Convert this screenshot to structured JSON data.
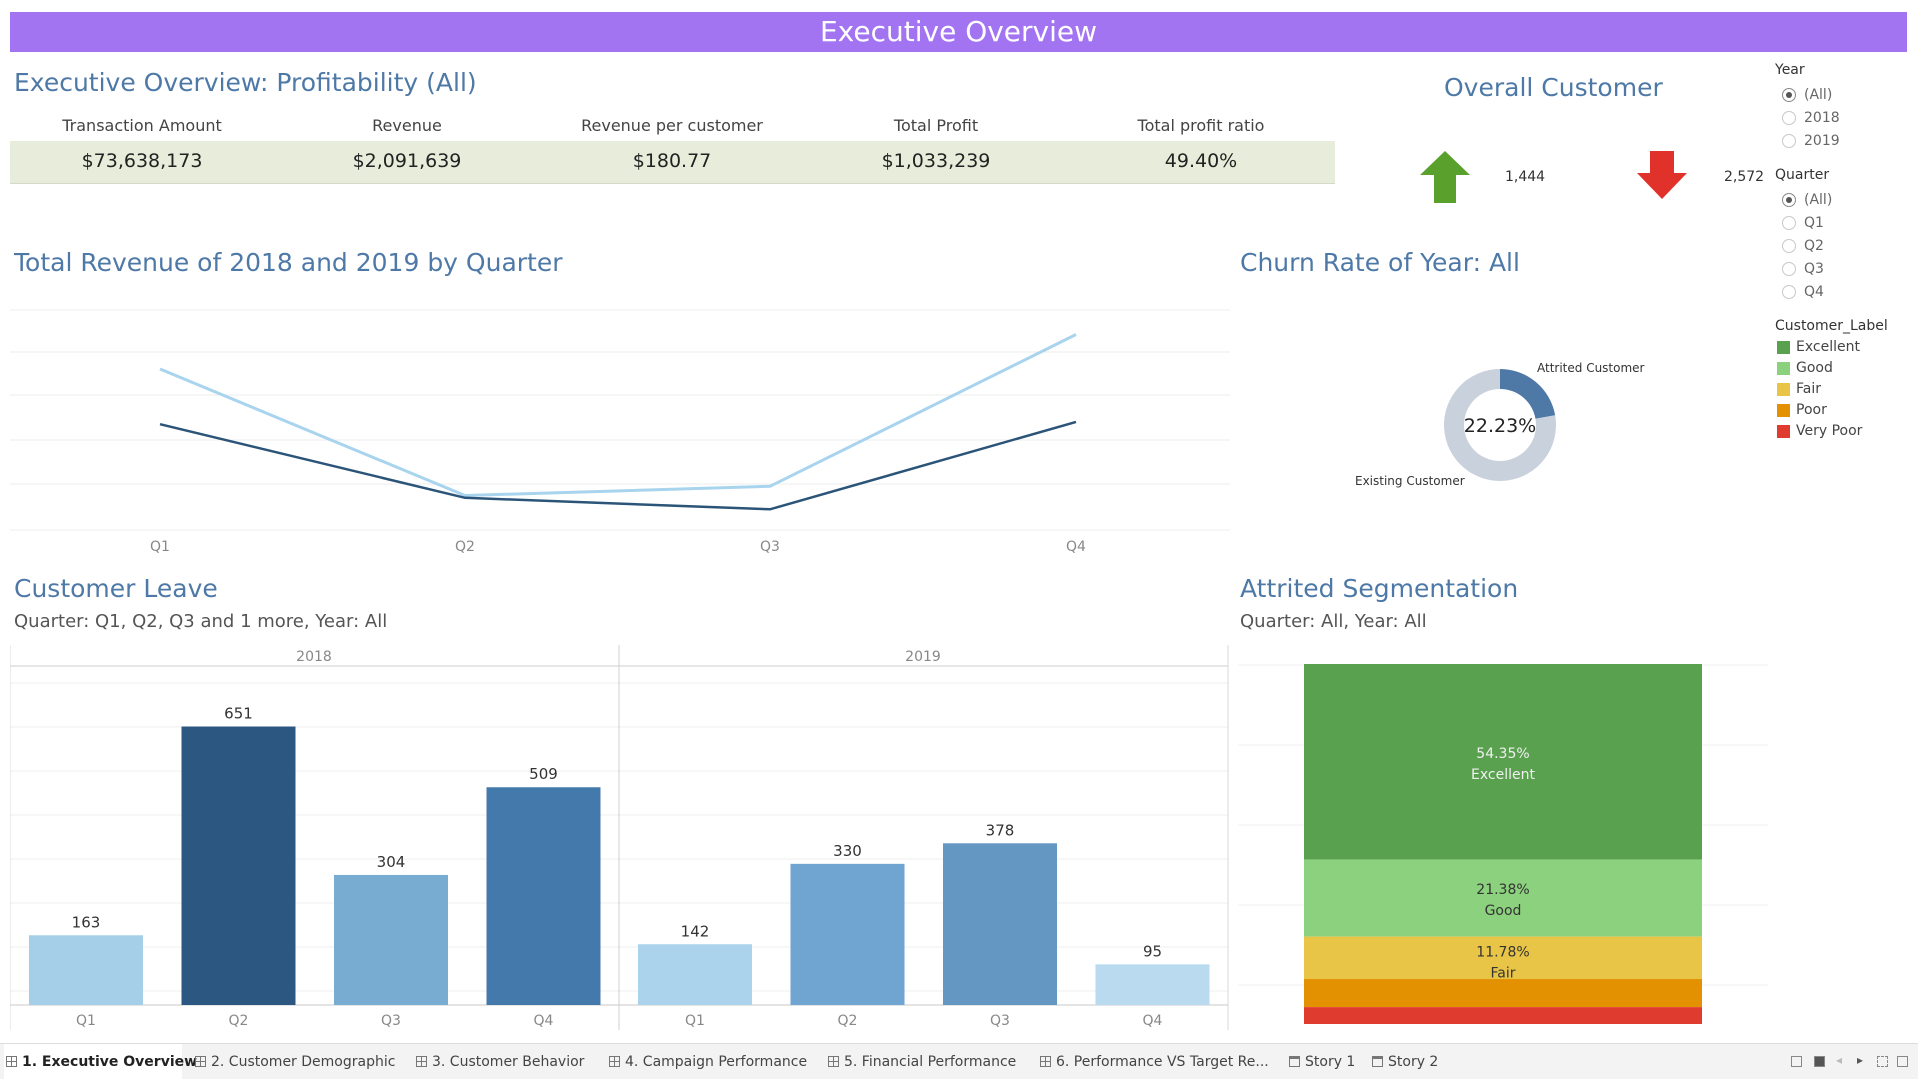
{
  "banner": {
    "title": "Executive Overview"
  },
  "profit": {
    "title": "Executive Overview: Profitability (All)",
    "kpis": [
      {
        "label": "Transaction Amount",
        "value": "$73,638,173"
      },
      {
        "label": "Revenue",
        "value": "$2,091,639"
      },
      {
        "label": "Revenue per customer",
        "value": "$180.77"
      },
      {
        "label": "Total Profit",
        "value": "$1,033,239"
      },
      {
        "label": "Total profit ratio",
        "value": "49.40%"
      }
    ]
  },
  "overall_customer": {
    "title": "Overall Customer",
    "up_value": "1,444",
    "down_value": "2,572",
    "up_icon": "arrow-up-icon",
    "down_icon": "arrow-down-icon",
    "up_color": "#5aa02c",
    "down_color": "#e0322b"
  },
  "revenue_chart": {
    "title": "Total Revenue of 2018 and 2019 by Quarter"
  },
  "churn": {
    "title": "Churn Rate of Year: All",
    "center_label": "22.23%",
    "attrited_label": "Attrited Customer",
    "existing_label": "Existing Customer"
  },
  "leave": {
    "title": "Customer Leave",
    "subtitle": "Quarter: Q1, Q2, Q3 and 1 more, Year: All"
  },
  "segmentation": {
    "title": "Attrited Segmentation",
    "subtitle": "Quarter: All, Year: All"
  },
  "filters": {
    "year": {
      "title": "Year",
      "options": [
        "(All)",
        "2018",
        "2019"
      ],
      "selected": "(All)"
    },
    "quarter": {
      "title": "Quarter",
      "options": [
        "(All)",
        "Q1",
        "Q2",
        "Q3",
        "Q4"
      ],
      "selected": "(All)"
    },
    "legend": {
      "title": "Customer_Label",
      "items": [
        {
          "label": "Excellent",
          "color": "#59a14f"
        },
        {
          "label": "Good",
          "color": "#8cd17d"
        },
        {
          "label": "Fair",
          "color": "#e8c547"
        },
        {
          "label": "Poor",
          "color": "#e39100"
        },
        {
          "label": "Very Poor",
          "color": "#e03b2f"
        }
      ]
    }
  },
  "tabs": [
    {
      "label": "1. Executive Overview",
      "active": true,
      "kind": "sheet"
    },
    {
      "label": "2. Customer Demographic",
      "active": false,
      "kind": "sheet"
    },
    {
      "label": "3. Customer Behavior",
      "active": false,
      "kind": "sheet"
    },
    {
      "label": "4. Campaign Performance",
      "active": false,
      "kind": "sheet"
    },
    {
      "label": "5. Financial Performance",
      "active": false,
      "kind": "sheet"
    },
    {
      "label": "6. Performance VS Target Re...",
      "active": false,
      "kind": "sheet"
    },
    {
      "label": "Story 1",
      "active": false,
      "kind": "story"
    },
    {
      "label": "Story 2",
      "active": false,
      "kind": "story"
    }
  ],
  "chart_data": [
    {
      "type": "line",
      "title": "Total Revenue of 2018 and 2019 by Quarter",
      "categories": [
        "Q1",
        "Q2",
        "Q3",
        "Q4"
      ],
      "grid": true,
      "series": [
        {
          "values": [
            0.7,
            0.15,
            0.19,
            0.85
          ],
          "color": "#a8d4ee"
        },
        {
          "values": [
            0.46,
            0.14,
            0.09,
            0.47
          ],
          "color": "#2b5478"
        }
      ]
    },
    {
      "type": "pie",
      "title": "Churn Rate of Year: All",
      "slices": [
        {
          "label": "Attrited Customer",
          "value": 22.23,
          "color": "#4e79a7"
        },
        {
          "label": "Existing Customer",
          "value": 77.77,
          "color": "#c9d2dc"
        }
      ]
    },
    {
      "type": "bar",
      "title": "Customer Leave",
      "panels": [
        {
          "year": "2018",
          "categories": [
            "Q1",
            "Q2",
            "Q3",
            "Q4"
          ],
          "values": [
            163,
            651,
            304,
            509
          ],
          "colors": [
            "#a5cee9",
            "#2b5781",
            "#78acd1",
            "#4479ab"
          ]
        },
        {
          "year": "2019",
          "categories": [
            "Q1",
            "Q2",
            "Q3",
            "Q4"
          ],
          "values": [
            142,
            330,
            378,
            95
          ],
          "colors": [
            "#acd3ec",
            "#6fa5d0",
            "#6497c2",
            "#b9daef"
          ]
        }
      ],
      "ylim": [
        0,
        700
      ],
      "grid": true
    },
    {
      "type": "bar",
      "title": "Attrited Segmentation",
      "stacked": true,
      "segments": [
        {
          "label": "Excellent",
          "value": 54.35,
          "text": "54.35%",
          "color": "#59a14f",
          "show_label": true
        },
        {
          "label": "Good",
          "value": 21.38,
          "text": "21.38%",
          "color": "#8cd17d",
          "show_label": true
        },
        {
          "label": "Fair",
          "value": 11.78,
          "text": "11.78%",
          "color": "#e8c547",
          "show_label": true
        },
        {
          "label": "Poor",
          "value": 7.8,
          "text": "",
          "color": "#e39100",
          "show_label": false
        },
        {
          "label": "Very Poor",
          "value": 4.69,
          "text": "",
          "color": "#e03b2f",
          "show_label": false
        }
      ]
    }
  ]
}
